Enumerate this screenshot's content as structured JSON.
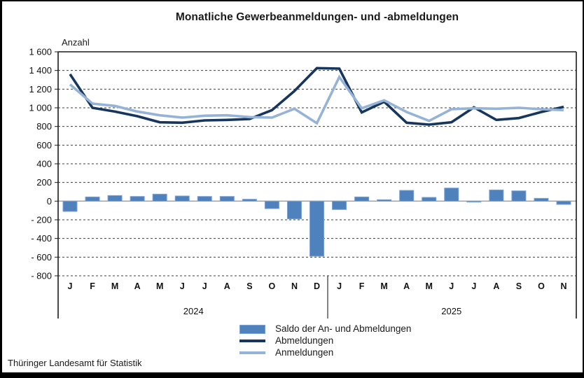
{
  "title": "Monatliche Gewerbeanmeldungen- und -abmeldungen",
  "footer": "Thüringer Landesamt für Statistik",
  "chart_data": {
    "type": "bar+line combo",
    "title": "Monatliche Gewerbeanmeldungen- und -abmeldungen",
    "axis_label": "Anzahl",
    "xlabel": "",
    "ylabel": "Anzahl",
    "ylim": [
      -800,
      1600
    ],
    "ytick_step": 200,
    "grid": "horizontal dashed",
    "legend_position": "bottom",
    "ytick_labels": [
      "1 600",
      "1 400",
      "1 200",
      "1 000",
      "800",
      "600",
      "400",
      "200",
      "0",
      "- 200",
      "- 400",
      "- 600",
      "- 800"
    ],
    "months": [
      "J",
      "F",
      "M",
      "A",
      "M",
      "J",
      "J",
      "A",
      "S",
      "O",
      "N",
      "D",
      "J",
      "F",
      "M",
      "A",
      "M",
      "J",
      "J",
      "A",
      "S",
      "O",
      "N"
    ],
    "year_groups": [
      {
        "label": "2024",
        "start": 0,
        "end": 11
      },
      {
        "label": "2025",
        "start": 12,
        "end": 22
      }
    ],
    "series": [
      {
        "name": "Saldo der An- und Abmeldungen",
        "type": "bar",
        "color": "#4f81bd",
        "edge_color": "#7ba2d4",
        "values": [
          -110,
          45,
          60,
          50,
          75,
          55,
          50,
          50,
          20,
          -80,
          -190,
          -590,
          -90,
          45,
          15,
          115,
          40,
          140,
          -10,
          120,
          110,
          30,
          -35
        ]
      },
      {
        "name": "Abmeldungen",
        "type": "line",
        "color": "#17365d",
        "values": [
          1360,
          1000,
          960,
          910,
          845,
          840,
          865,
          870,
          880,
          975,
          1180,
          1425,
          1420,
          950,
          1065,
          840,
          820,
          845,
          1005,
          870,
          890,
          955,
          1010
        ]
      },
      {
        "name": "Anmeldungen",
        "type": "line",
        "color": "#95b3d7",
        "values": [
          1250,
          1045,
          1020,
          960,
          920,
          895,
          915,
          920,
          900,
          895,
          990,
          835,
          1330,
          995,
          1080,
          955,
          860,
          985,
          995,
          990,
          1000,
          985,
          975
        ]
      }
    ]
  }
}
